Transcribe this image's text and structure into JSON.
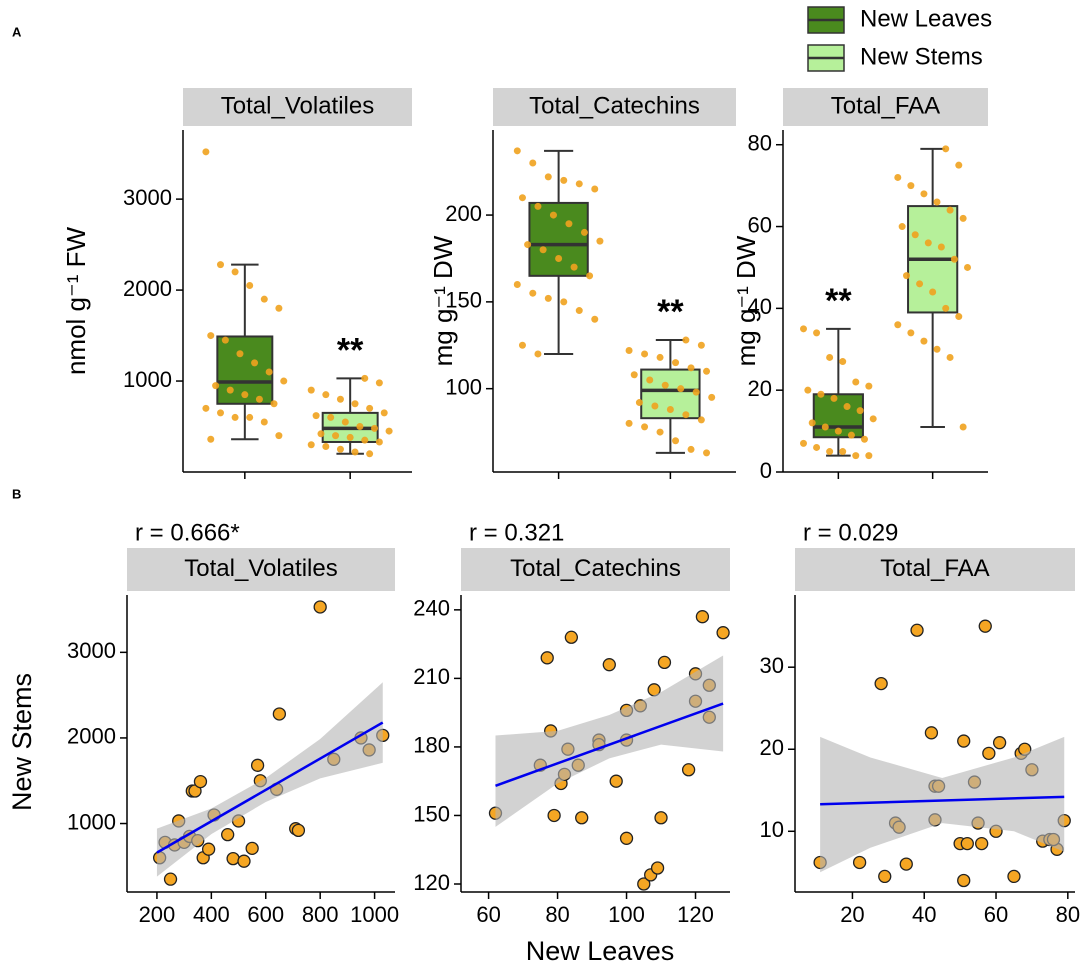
{
  "figure": {
    "panel_labels": [
      "A",
      "B"
    ],
    "xlabel": "New Leaves",
    "ylabel": "New Stems"
  },
  "chart_data": [
    {
      "type": "box",
      "title": "Total_Volatiles",
      "ylabel": "nmol g⁻¹ FW",
      "ylim": [
        0,
        3760
      ],
      "yticks": [
        1000,
        2000,
        3000
      ],
      "annotation": {
        "text": "**",
        "series": 1
      },
      "series": [
        {
          "name": "New Leaves",
          "color": "#4a8a1e",
          "min": 360,
          "q1": 750,
          "median": 990,
          "q3": 1490,
          "max": 2280,
          "points": [
            3520,
            2280,
            2200,
            2050,
            1900,
            1800,
            1500,
            1450,
            1300,
            1200,
            1100,
            1000,
            950,
            900,
            850,
            800,
            750,
            700,
            650,
            600,
            600,
            550,
            400,
            360
          ]
        },
        {
          "name": "New Stems",
          "color": "#b6f09a",
          "min": 200,
          "q1": 330,
          "median": 480,
          "q3": 650,
          "max": 1030,
          "points": [
            1030,
            980,
            900,
            850,
            800,
            750,
            700,
            650,
            620,
            600,
            550,
            500,
            480,
            450,
            420,
            400,
            380,
            350,
            330,
            300,
            280,
            250,
            220,
            200
          ]
        }
      ]
    },
    {
      "type": "box",
      "title": "Total_Catechins",
      "ylabel": "mg g⁻¹ DW",
      "ylim": [
        52,
        249
      ],
      "yticks": [
        100,
        150,
        200
      ],
      "annotation": {
        "text": "**",
        "series": 1
      },
      "series": [
        {
          "name": "New Leaves",
          "color": "#4a8a1e",
          "min": 120,
          "q1": 165,
          "median": 183,
          "q3": 207,
          "max": 237,
          "points": [
            237,
            230,
            222,
            220,
            218,
            215,
            210,
            205,
            200,
            195,
            190,
            185,
            183,
            180,
            175,
            170,
            165,
            160,
            155,
            152,
            150,
            145,
            140,
            125,
            120
          ]
        },
        {
          "name": "New Stems",
          "color": "#b6f09a",
          "min": 63,
          "q1": 83,
          "median": 99,
          "q3": 111,
          "max": 128,
          "points": [
            128,
            125,
            122,
            120,
            118,
            115,
            112,
            110,
            108,
            105,
            102,
            100,
            98,
            95,
            92,
            90,
            88,
            85,
            82,
            80,
            78,
            75,
            70,
            65,
            63
          ]
        }
      ]
    },
    {
      "type": "box",
      "title": "Total_FAA",
      "ylabel": "mg g⁻¹ DW",
      "ylim": [
        0,
        83.6
      ],
      "yticks": [
        0,
        20,
        40,
        60,
        80
      ],
      "annotation": {
        "text": "**",
        "series": 0
      },
      "series": [
        {
          "name": "New Leaves",
          "color": "#4a8a1e",
          "min": 4,
          "q1": 8.5,
          "median": 11,
          "q3": 19,
          "max": 35,
          "points": [
            35,
            34,
            28,
            27,
            22,
            21,
            20,
            19,
            18,
            16,
            15,
            13,
            12,
            11,
            10,
            9,
            8,
            7,
            6,
            5,
            5,
            4,
            4
          ]
        },
        {
          "name": "New Stems",
          "color": "#b6f09a",
          "min": 11,
          "q1": 39,
          "median": 52,
          "q3": 65,
          "max": 79,
          "points": [
            79,
            75,
            72,
            70,
            68,
            66,
            64,
            62,
            60,
            58,
            56,
            55,
            52,
            50,
            48,
            46,
            44,
            40,
            38,
            36,
            34,
            32,
            30,
            28,
            11
          ]
        }
      ]
    },
    {
      "type": "scatter",
      "title": "Total_Volatiles",
      "annotation": "r = 0.666*",
      "color": "#f5a623",
      "xlim": [
        90,
        1075
      ],
      "xticks": [
        200,
        400,
        600,
        800,
        1000
      ],
      "ylim": [
        200,
        3670
      ],
      "yticks": [
        1000,
        2000,
        3000
      ],
      "x": [
        210,
        230,
        250,
        265,
        280,
        300,
        320,
        330,
        340,
        350,
        360,
        370,
        390,
        410,
        460,
        480,
        500,
        520,
        550,
        570,
        580,
        640,
        650,
        710,
        720,
        800,
        850,
        950,
        980,
        1030
      ],
      "y": [
        600,
        780,
        350,
        750,
        1030,
        780,
        850,
        1380,
        1380,
        800,
        1490,
        600,
        700,
        1100,
        870,
        590,
        1030,
        560,
        710,
        1680,
        1500,
        1400,
        2280,
        940,
        920,
        3530,
        1750,
        2000,
        1860,
        2030
      ],
      "fit": {
        "color": "#0000ee",
        "x": [
          200,
          1030
        ],
        "y": [
          660,
          2180
        ]
      },
      "ci_band": {
        "x": [
          200,
          400,
          600,
          800,
          1030
        ],
        "lower": [
          380,
          876,
          1252,
          1528,
          1710
        ],
        "upper": [
          940,
          1176,
          1532,
          1988,
          2650
        ]
      }
    },
    {
      "type": "scatter",
      "title": "Total_Catechins",
      "annotation": "r = 0.321",
      "color": "#f5a623",
      "xlim": [
        52,
        130
      ],
      "xticks": [
        60,
        80,
        100,
        120
      ],
      "ylim": [
        116.5,
        246.5
      ],
      "yticks": [
        120,
        150,
        180,
        210,
        240
      ],
      "x": [
        62,
        75,
        77,
        78,
        79,
        81,
        82,
        83,
        84,
        86,
        87,
        92,
        92,
        95,
        97,
        100,
        100,
        100,
        104,
        105,
        107,
        108,
        109,
        110,
        111,
        118,
        120,
        120,
        122,
        124,
        124,
        128
      ],
      "y": [
        151,
        172,
        219,
        187,
        150,
        164,
        168,
        179,
        228,
        172,
        149,
        183,
        181,
        216,
        165,
        140,
        183,
        196,
        198,
        120,
        124,
        205,
        127,
        149,
        217,
        170,
        212,
        200,
        237,
        193,
        207,
        230
      ],
      "fit": {
        "color": "#0000ee",
        "x": [
          62,
          128
        ],
        "y": [
          163,
          199
        ]
      },
      "ci_band": {
        "x": [
          62,
          80,
          95,
          110,
          128
        ],
        "lower": [
          145,
          164,
          175,
          181,
          178
        ],
        "upper": [
          185,
          187,
          194,
          204,
          220
        ]
      }
    },
    {
      "type": "scatter",
      "title": "Total_FAA",
      "annotation": "r = 0.029",
      "color": "#f5a623",
      "xlim": [
        4,
        82
      ],
      "xticks": [
        20,
        40,
        60,
        80
      ],
      "ylim": [
        2.6,
        38.8
      ],
      "yticks": [
        10,
        20,
        30
      ],
      "x": [
        11,
        22,
        28,
        29,
        32,
        33,
        35,
        38,
        42,
        43,
        43,
        44,
        50,
        51,
        51,
        52,
        54,
        55,
        56,
        57,
        58,
        60,
        61,
        65,
        67,
        68,
        70,
        73,
        75,
        77,
        76,
        79
      ],
      "y": [
        6.2,
        6.2,
        28,
        4.5,
        11,
        10.5,
        6,
        34.5,
        22,
        15.5,
        11.4,
        15.5,
        8.5,
        21,
        4,
        8.5,
        16,
        11,
        8.5,
        35,
        19.5,
        10,
        20.8,
        4.5,
        19.5,
        20,
        17.5,
        8.8,
        9,
        7.8,
        9,
        11.3
      ],
      "fit": {
        "color": "#0000ee",
        "x": [
          11,
          79
        ],
        "y": [
          13.3,
          14.2
        ]
      },
      "ci_band": {
        "x": [
          11,
          25,
          45,
          65,
          79
        ],
        "lower": [
          5,
          8,
          11,
          10,
          7.5
        ],
        "upper": [
          21.5,
          19,
          16.5,
          19,
          21.5
        ]
      }
    }
  ]
}
